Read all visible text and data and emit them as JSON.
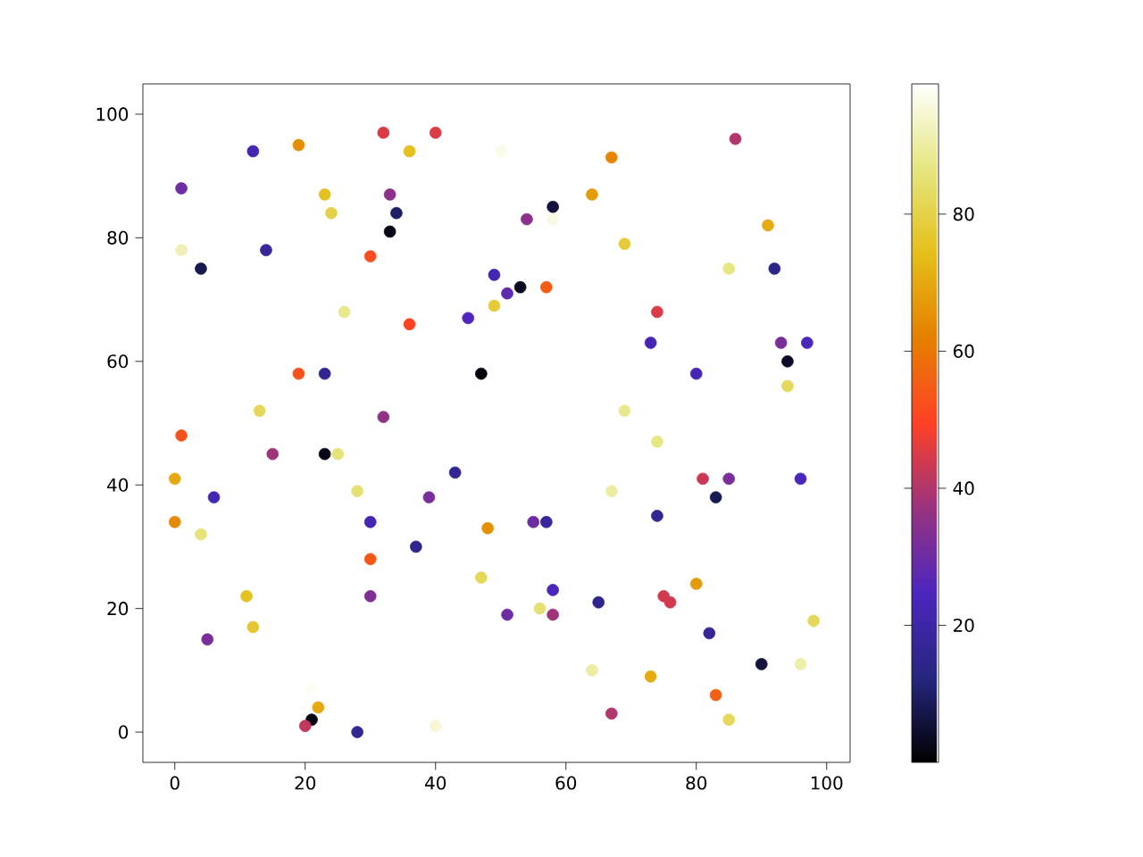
{
  "chart_data": {
    "type": "scatter",
    "marker": "circle",
    "x": [
      1,
      12,
      19,
      32,
      40,
      36,
      50,
      23,
      24,
      33,
      34,
      33,
      1,
      4,
      14,
      30,
      26,
      36,
      45,
      49,
      51,
      53,
      57,
      49,
      54,
      58,
      58,
      64,
      67,
      69,
      74,
      73,
      85,
      92,
      86,
      91,
      93,
      97,
      94,
      94,
      80,
      69,
      74,
      81,
      85,
      96,
      83,
      74,
      67,
      47,
      23,
      19,
      13,
      32,
      1,
      15,
      23,
      25,
      0,
      6,
      28,
      39,
      43,
      0,
      4,
      30,
      37,
      30,
      30,
      11,
      12,
      5,
      22,
      21,
      20,
      28,
      40,
      21,
      48,
      47,
      51,
      55,
      57,
      58,
      56,
      58,
      65,
      64,
      67,
      73,
      75,
      76,
      80,
      82,
      83,
      85,
      90,
      96,
      98
    ],
    "values": [
      88,
      94,
      95,
      97,
      97,
      94,
      94,
      87,
      84,
      87,
      84,
      81,
      78,
      75,
      78,
      77,
      68,
      66,
      67,
      74,
      71,
      72,
      72,
      69,
      83,
      85,
      83,
      87,
      93,
      79,
      68,
      63,
      75,
      75,
      96,
      82,
      63,
      63,
      60,
      56,
      58,
      52,
      47,
      41,
      41,
      41,
      38,
      35,
      39,
      58,
      58,
      58,
      52,
      51,
      48,
      45,
      45,
      45,
      41,
      38,
      39,
      38,
      42,
      34,
      32,
      34,
      30,
      28,
      22,
      22,
      17,
      15,
      4,
      2,
      1,
      0,
      1,
      7,
      33,
      25,
      19,
      34,
      34,
      23,
      20,
      19,
      21,
      10,
      3,
      9,
      22,
      21,
      24,
      16,
      6,
      2,
      11,
      11,
      18
    ],
    "cvalues": [
      30,
      22,
      65,
      45,
      45,
      75,
      97,
      75,
      80,
      35,
      10,
      2,
      92,
      8,
      18,
      52,
      88,
      50,
      25,
      22,
      28,
      3,
      55,
      78,
      35,
      6,
      96,
      67,
      63,
      78,
      45,
      23,
      87,
      14,
      40,
      70,
      32,
      24,
      4,
      82,
      23,
      88,
      87,
      43,
      32,
      24,
      8,
      16,
      90,
      1,
      16,
      53,
      82,
      36,
      53,
      38,
      2,
      86,
      70,
      22,
      85,
      32,
      16,
      64,
      86,
      23,
      15,
      54,
      33,
      75,
      77,
      32,
      70,
      2,
      42,
      16,
      95,
      98,
      65,
      82,
      30,
      30,
      18,
      24,
      85,
      38,
      15,
      90,
      40,
      70,
      44,
      44,
      67,
      17,
      56,
      82,
      6,
      91,
      82
    ],
    "xlim": [
      -4.9,
      103.6
    ],
    "ylim": [
      -4.9,
      104.9
    ],
    "xticks": [
      0,
      20,
      40,
      60,
      80,
      100
    ],
    "yticks": [
      0,
      20,
      40,
      60,
      80,
      100
    ],
    "clim": [
      0,
      99
    ],
    "cticks": [
      20,
      40,
      60,
      80
    ]
  }
}
